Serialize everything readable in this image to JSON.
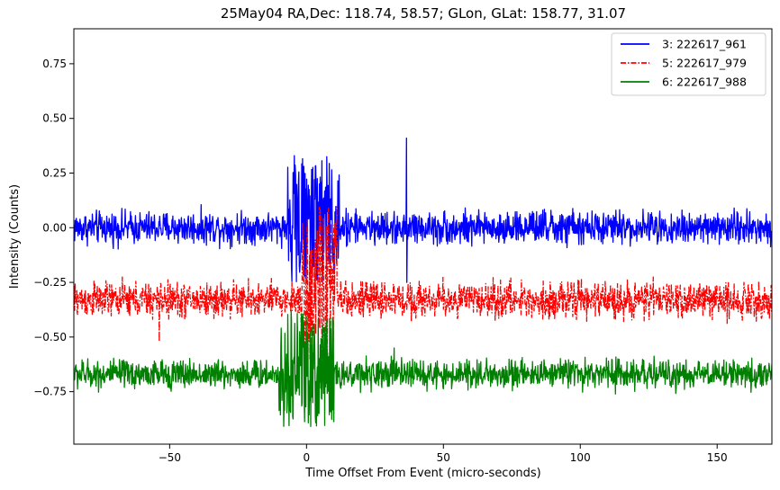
{
  "chart_data": {
    "type": "line",
    "title": "25May04 RA,Dec:  118.74,  58.57; GLon, GLat:  158.77,  31.07",
    "xlabel": "Time Offset From Event (micro-seconds)",
    "ylabel": "Intensity (Counts)",
    "xlim": [
      -85,
      170
    ],
    "ylim": [
      -0.99,
      0.91
    ],
    "xticks": [
      -50,
      0,
      50,
      100,
      150
    ],
    "xtick_labels": [
      "−50",
      "0",
      "50",
      "100",
      "150"
    ],
    "yticks": [
      0.75,
      0.5,
      0.25,
      0.0,
      -0.25,
      -0.5,
      -0.75
    ],
    "ytick_labels": [
      "0.75",
      "0.50",
      "0.25",
      "0.00",
      "−0.25",
      "−0.50",
      "−0.75"
    ],
    "grid": false,
    "legend_position": "top-right",
    "series": [
      {
        "name": "3: 222617_961",
        "color": "#0000ff",
        "linestyle": "solid",
        "baseline": 0.0,
        "noise_amplitude": 0.045,
        "burst_window": [
          -7,
          12
        ],
        "burst_range": [
          -0.25,
          0.33
        ],
        "spike": {
          "x": 36.5,
          "max": 0.41,
          "min": -0.25
        }
      },
      {
        "name": "5: 222617_979",
        "color": "#ff0000",
        "linestyle": "dashdot",
        "baseline": -0.33,
        "noise_amplitude": 0.05,
        "burst_window": [
          -2,
          11
        ],
        "burst_range": [
          -0.62,
          0.12
        ],
        "spike": {
          "x": -54,
          "max": -0.3,
          "min": -0.52
        }
      },
      {
        "name": "6: 222617_988",
        "color": "#008000",
        "linestyle": "solid",
        "baseline": -0.67,
        "noise_amplitude": 0.04,
        "burst_window": [
          -10,
          10
        ],
        "burst_range": [
          -0.91,
          -0.37
        ],
        "spike": {
          "x": 32,
          "max": -0.55,
          "min": -0.7
        }
      }
    ]
  }
}
